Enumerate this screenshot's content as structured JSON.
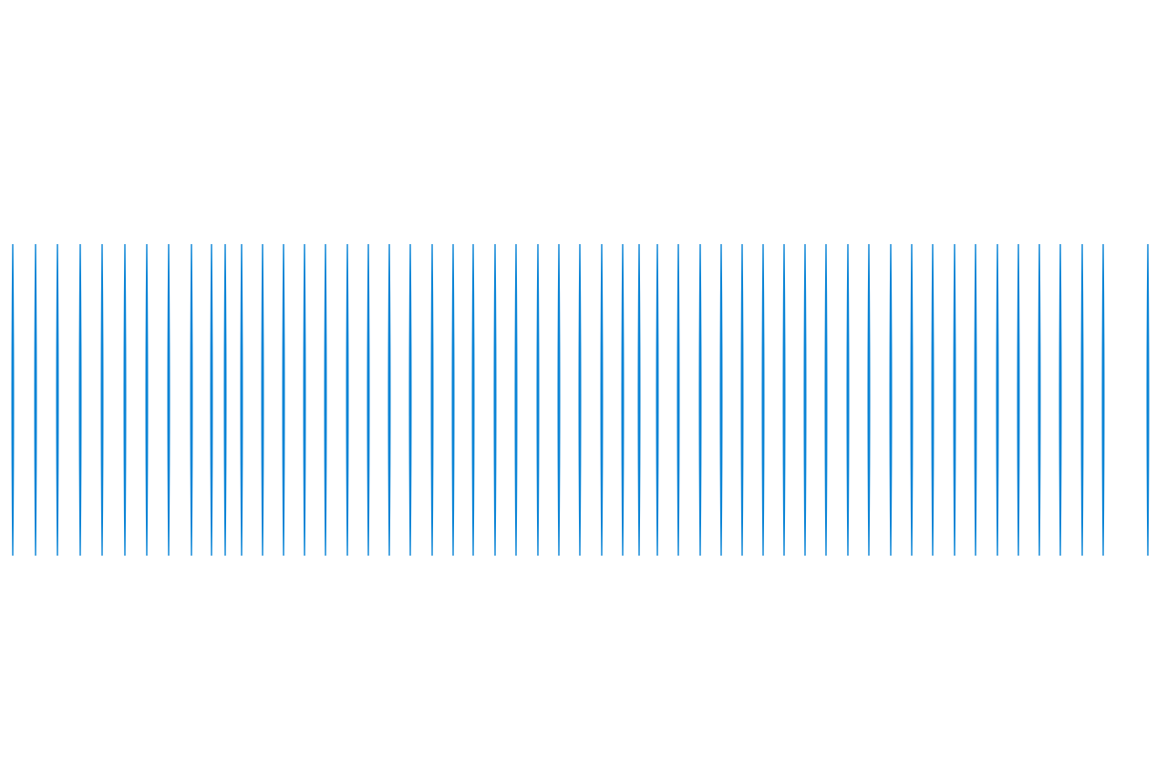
{
  "graphic": {
    "kind": "vertical-line-pattern",
    "line_count": 54,
    "line_color": "#0a84d6",
    "background_color": "#ffffff"
  }
}
